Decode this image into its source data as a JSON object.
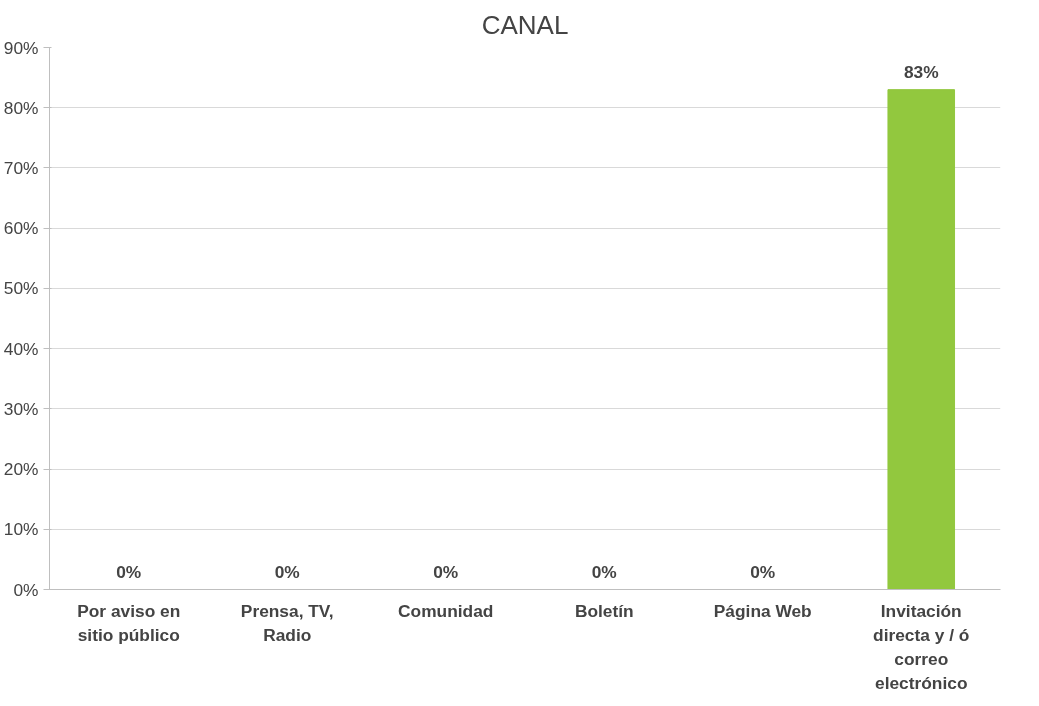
{
  "chart_data": {
    "type": "bar",
    "title": "CANAL",
    "categories": [
      "Por aviso en sitio público",
      "Prensa, TV, Radio",
      "Comunidad",
      "Boletín",
      "Página Web",
      "Invitación directa y / ó correo electrónico"
    ],
    "values": [
      0,
      0,
      0,
      0,
      0,
      83
    ],
    "color": "#92c83e",
    "value_labels": [
      "0%",
      "0%",
      "0%",
      "0%",
      "0%",
      "83%"
    ],
    "ylim": [
      0,
      90
    ],
    "yticks": [
      {
        "value": 0,
        "label": "0%"
      },
      {
        "value": 10,
        "label": "10%"
      },
      {
        "value": 20,
        "label": "20%"
      },
      {
        "value": 30,
        "label": "30%"
      },
      {
        "value": 40,
        "label": "40%"
      },
      {
        "value": 50,
        "label": "50%"
      },
      {
        "value": 60,
        "label": "60%"
      },
      {
        "value": 70,
        "label": "70%"
      },
      {
        "value": 80,
        "label": "80%"
      },
      {
        "value": 90,
        "label": "90%"
      }
    ],
    "grid": "y"
  }
}
